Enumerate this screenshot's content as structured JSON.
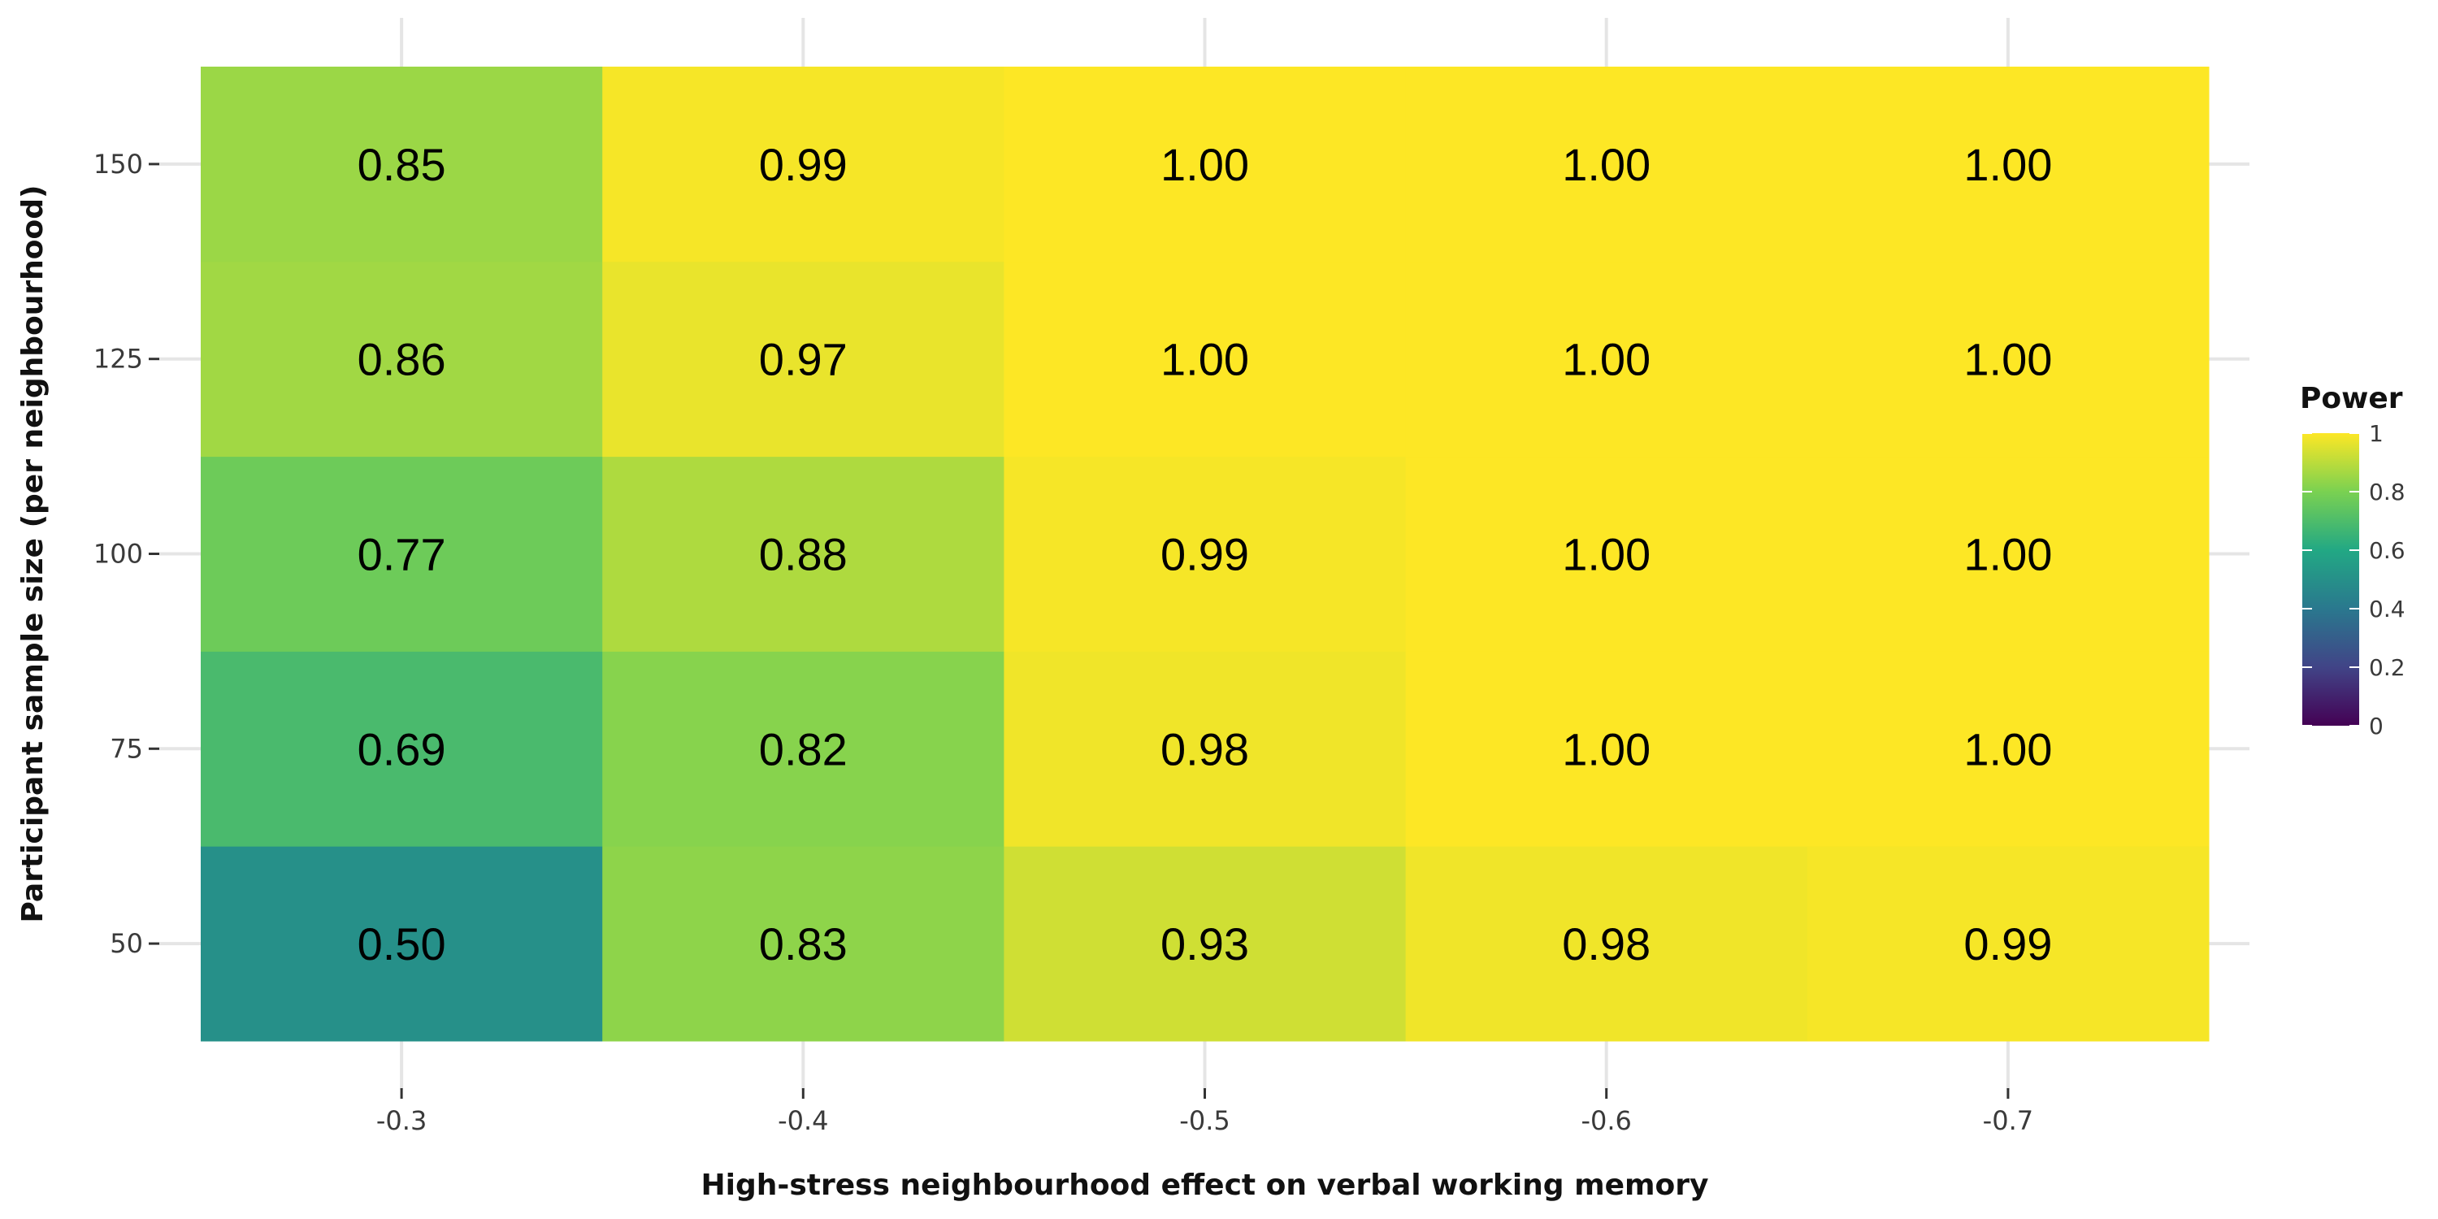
{
  "chart_data": {
    "type": "heatmap",
    "xlabel": "High-stress neighbourhood effect on verbal working memory",
    "ylabel": "Participant sample size (per neighbourhood)",
    "x_categories": [
      "-0.3",
      "-0.4",
      "-0.5",
      "-0.6",
      "-0.7"
    ],
    "y_categories": [
      "50",
      "75",
      "100",
      "125",
      "150"
    ],
    "values": [
      [
        0.5,
        0.83,
        0.93,
        0.98,
        0.99
      ],
      [
        0.69,
        0.82,
        0.98,
        1.0,
        1.0
      ],
      [
        0.77,
        0.88,
        0.99,
        1.0,
        1.0
      ],
      [
        0.86,
        0.97,
        1.0,
        1.0,
        1.0
      ],
      [
        0.85,
        0.99,
        1.0,
        1.0,
        1.0
      ]
    ],
    "labels": [
      [
        "0.50",
        "0.83",
        "0.93",
        "0.98",
        "0.99"
      ],
      [
        "0.69",
        "0.82",
        "0.98",
        "1.00",
        "1.00"
      ],
      [
        "0.77",
        "0.88",
        "0.99",
        "1.00",
        "1.00"
      ],
      [
        "0.86",
        "0.97",
        "1.00",
        "1.00",
        "1.00"
      ],
      [
        "0.85",
        "0.99",
        "1.00",
        "1.00",
        "1.00"
      ]
    ],
    "legend": {
      "title": "Power",
      "ticks": [
        "0",
        "0.2",
        "0.4",
        "0.6",
        "0.8",
        "1"
      ],
      "range": [
        0,
        1
      ],
      "palette": "viridis",
      "position": "right"
    },
    "grid": true
  },
  "colors": {
    "viridis_stops": [
      "#440154",
      "#414487",
      "#2a788e",
      "#22a884",
      "#7ad151",
      "#fde725"
    ],
    "gridline": "#e5e5e5"
  }
}
